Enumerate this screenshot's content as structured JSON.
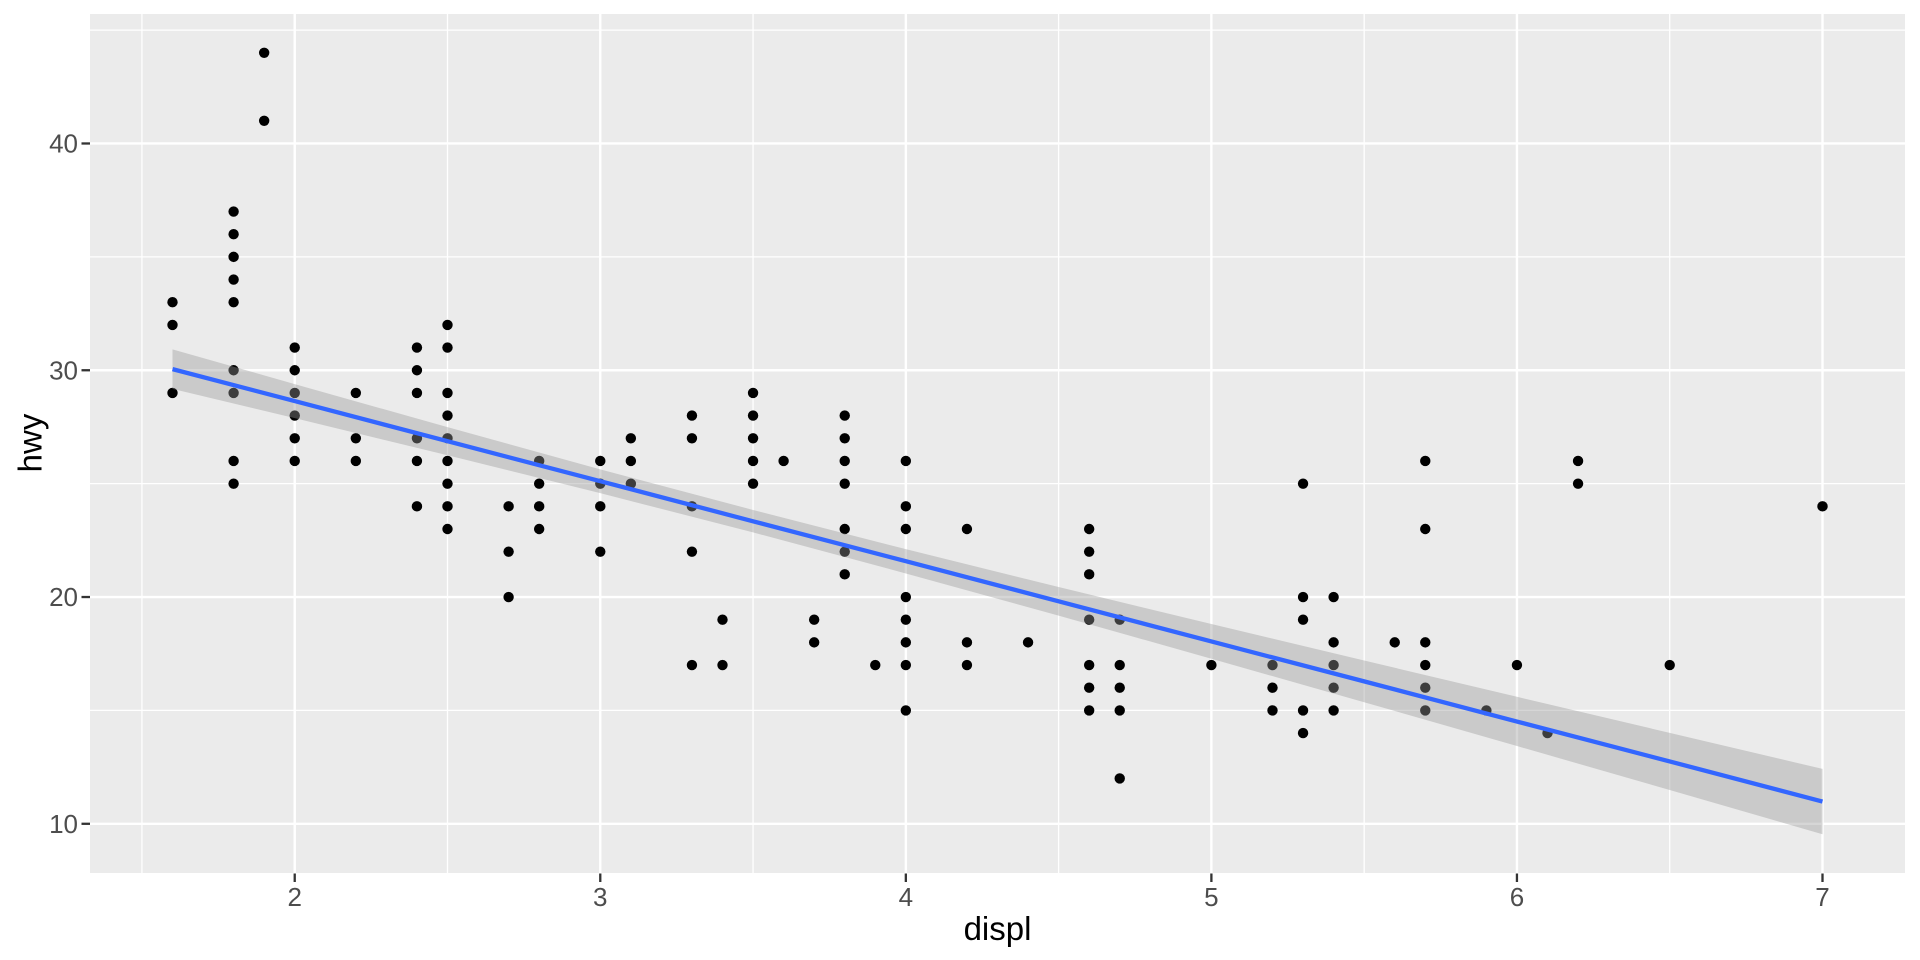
{
  "chart_data": {
    "type": "scatter",
    "title": "",
    "xlabel": "displ",
    "ylabel": "hwy",
    "x_domain": [
      1.33,
      7.27
    ],
    "y_domain": [
      7.83,
      45.71
    ],
    "x_ticks": [
      2,
      3,
      4,
      5,
      6,
      7
    ],
    "y_ticks": [
      10,
      20,
      30,
      40
    ],
    "x_minor": [
      1.5,
      2.5,
      3.5,
      4.5,
      5.5,
      6.5
    ],
    "y_minor": [
      15,
      25,
      35,
      45
    ],
    "grid": true,
    "legend": "none",
    "points": [
      [
        1.6,
        33
      ],
      [
        1.6,
        32
      ],
      [
        1.6,
        29
      ],
      [
        1.8,
        37
      ],
      [
        1.8,
        36
      ],
      [
        1.8,
        35
      ],
      [
        1.8,
        34
      ],
      [
        1.8,
        33
      ],
      [
        1.8,
        30
      ],
      [
        1.8,
        29
      ],
      [
        1.8,
        26
      ],
      [
        1.8,
        25
      ],
      [
        1.9,
        44
      ],
      [
        1.9,
        41
      ],
      [
        2,
        31
      ],
      [
        2,
        30
      ],
      [
        2,
        29
      ],
      [
        2,
        28
      ],
      [
        2,
        27
      ],
      [
        2,
        26
      ],
      [
        2.2,
        29
      ],
      [
        2.2,
        27
      ],
      [
        2.2,
        26
      ],
      [
        2.4,
        31
      ],
      [
        2.4,
        30
      ],
      [
        2.4,
        29
      ],
      [
        2.4,
        27
      ],
      [
        2.4,
        26
      ],
      [
        2.4,
        24
      ],
      [
        2.5,
        32
      ],
      [
        2.5,
        31
      ],
      [
        2.5,
        29
      ],
      [
        2.5,
        28
      ],
      [
        2.5,
        27
      ],
      [
        2.5,
        26
      ],
      [
        2.5,
        25
      ],
      [
        2.5,
        24
      ],
      [
        2.5,
        23
      ],
      [
        2.7,
        24
      ],
      [
        2.7,
        22
      ],
      [
        2.7,
        20
      ],
      [
        2.8,
        26
      ],
      [
        2.8,
        25
      ],
      [
        2.8,
        24
      ],
      [
        2.8,
        23
      ],
      [
        3,
        26
      ],
      [
        3,
        25
      ],
      [
        3,
        24
      ],
      [
        3,
        22
      ],
      [
        3.1,
        27
      ],
      [
        3.1,
        26
      ],
      [
        3.1,
        25
      ],
      [
        3.3,
        28
      ],
      [
        3.3,
        27
      ],
      [
        3.3,
        24
      ],
      [
        3.3,
        22
      ],
      [
        3.3,
        17
      ],
      [
        3.4,
        19
      ],
      [
        3.4,
        17
      ],
      [
        3.5,
        29
      ],
      [
        3.5,
        28
      ],
      [
        3.5,
        27
      ],
      [
        3.5,
        26
      ],
      [
        3.5,
        25
      ],
      [
        3.6,
        26
      ],
      [
        3.7,
        19
      ],
      [
        3.7,
        18
      ],
      [
        3.8,
        28
      ],
      [
        3.8,
        27
      ],
      [
        3.8,
        26
      ],
      [
        3.8,
        25
      ],
      [
        3.8,
        23
      ],
      [
        3.8,
        22
      ],
      [
        3.8,
        21
      ],
      [
        3.9,
        17
      ],
      [
        4,
        26
      ],
      [
        4,
        24
      ],
      [
        4,
        23
      ],
      [
        4,
        20
      ],
      [
        4,
        19
      ],
      [
        4,
        18
      ],
      [
        4,
        17
      ],
      [
        4,
        15
      ],
      [
        4.2,
        23
      ],
      [
        4.2,
        18
      ],
      [
        4.2,
        17
      ],
      [
        4.4,
        18
      ],
      [
        4.6,
        23
      ],
      [
        4.6,
        22
      ],
      [
        4.6,
        21
      ],
      [
        4.6,
        19
      ],
      [
        4.6,
        17
      ],
      [
        4.6,
        16
      ],
      [
        4.6,
        15
      ],
      [
        4.7,
        19
      ],
      [
        4.7,
        17
      ],
      [
        4.7,
        16
      ],
      [
        4.7,
        15
      ],
      [
        4.7,
        12
      ],
      [
        5,
        17
      ],
      [
        5.2,
        17
      ],
      [
        5.2,
        16
      ],
      [
        5.2,
        15
      ],
      [
        5.3,
        25
      ],
      [
        5.3,
        20
      ],
      [
        5.3,
        19
      ],
      [
        5.3,
        15
      ],
      [
        5.3,
        14
      ],
      [
        5.4,
        20
      ],
      [
        5.4,
        18
      ],
      [
        5.4,
        17
      ],
      [
        5.4,
        16
      ],
      [
        5.4,
        15
      ],
      [
        5.6,
        18
      ],
      [
        5.7,
        26
      ],
      [
        5.7,
        23
      ],
      [
        5.7,
        18
      ],
      [
        5.7,
        17
      ],
      [
        5.7,
        16
      ],
      [
        5.7,
        15
      ],
      [
        5.9,
        15
      ],
      [
        6,
        17
      ],
      [
        6.1,
        14
      ],
      [
        6.2,
        26
      ],
      [
        6.2,
        25
      ],
      [
        6.5,
        17
      ],
      [
        7,
        24
      ]
    ],
    "smooth": {
      "method": "lm",
      "x": [
        1.6,
        2.0,
        2.5,
        3.0,
        3.5,
        4.0,
        4.5,
        5.0,
        5.5,
        6.0,
        6.5,
        7.0
      ],
      "fit": [
        30.05,
        28.64,
        26.87,
        25.11,
        23.34,
        21.58,
        19.81,
        18.04,
        16.28,
        14.51,
        12.75,
        10.98
      ],
      "lower": [
        29.18,
        27.89,
        26.25,
        24.58,
        22.85,
        21.04,
        19.18,
        17.28,
        15.36,
        13.43,
        11.49,
        9.54
      ],
      "upper": [
        30.92,
        29.39,
        27.49,
        25.63,
        23.84,
        22.11,
        20.44,
        18.81,
        17.2,
        15.6,
        14.01,
        12.42
      ]
    },
    "colors": {
      "background": "#FFFFFF",
      "panel_bg": "#EBEBEB",
      "grid": "#FFFFFF",
      "point": "#000000",
      "smooth_line": "#3366FF",
      "ribbon": "rgba(153,153,153,0.4)",
      "tick_mark": "#333333",
      "tick_text": "#4D4D4D",
      "axis_title": "#000000"
    }
  }
}
